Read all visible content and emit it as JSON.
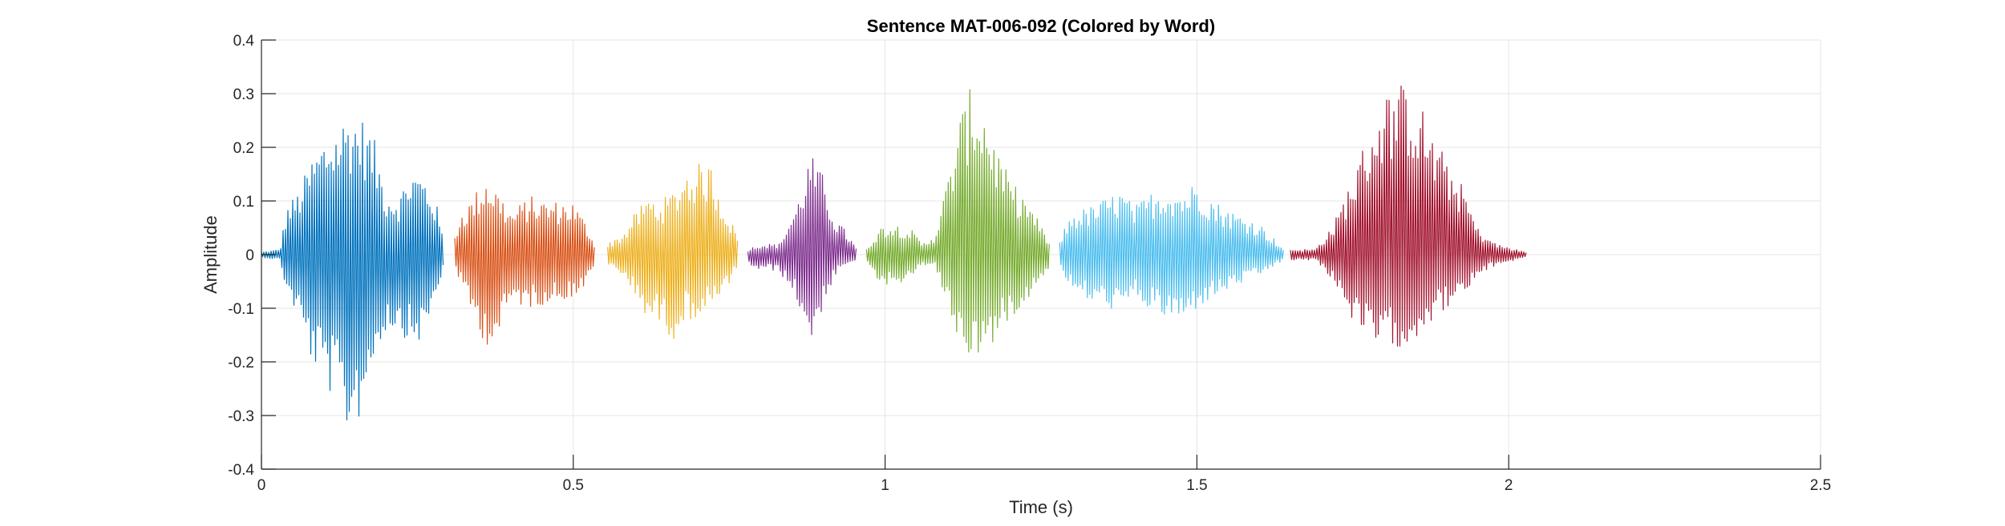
{
  "chart_data": {
    "type": "line",
    "title": "Sentence MAT-006-092 (Colored by Word)",
    "xlabel": "Time (s)",
    "ylabel": "Amplitude",
    "xlim": [
      0,
      2.5
    ],
    "ylim": [
      -0.4,
      0.4
    ],
    "grid": true,
    "x_ticks": [
      0,
      0.5,
      1,
      1.5,
      2,
      2.5
    ],
    "x_tick_labels": [
      "0",
      "0.5",
      "1",
      "1.5",
      "2",
      "2.5"
    ],
    "y_ticks": [
      0.4,
      0.3,
      0.2,
      0.1,
      0,
      -0.1,
      -0.2,
      -0.3,
      -0.4
    ],
    "y_tick_labels": [
      "0.4",
      "0.3",
      "0.2",
      "0.1",
      "0",
      "-0.1",
      "-0.2",
      "-0.3",
      "-0.4"
    ],
    "series": [
      {
        "color": "#0072BD",
        "start": 0.0,
        "end": 0.293,
        "envelope": [
          [
            0,
            0.005,
            -0.005
          ],
          [
            0.03,
            0.01,
            -0.01
          ],
          [
            0.04,
            0.09,
            -0.07
          ],
          [
            0.06,
            0.12,
            -0.12
          ],
          [
            0.08,
            0.18,
            -0.2
          ],
          [
            0.1,
            0.22,
            -0.24
          ],
          [
            0.12,
            0.24,
            -0.28
          ],
          [
            0.14,
            0.27,
            -0.34
          ],
          [
            0.16,
            0.26,
            -0.3
          ],
          [
            0.18,
            0.22,
            -0.2
          ],
          [
            0.2,
            0.12,
            -0.14
          ],
          [
            0.22,
            0.11,
            -0.14
          ],
          [
            0.24,
            0.16,
            -0.17
          ],
          [
            0.26,
            0.15,
            -0.16
          ],
          [
            0.28,
            0.1,
            -0.08
          ],
          [
            0.293,
            0.02,
            -0.02
          ]
        ]
      },
      {
        "color": "#D95319",
        "start": 0.31,
        "end": 0.535,
        "envelope": [
          [
            0.31,
            0.04,
            -0.02
          ],
          [
            0.32,
            0.08,
            -0.06
          ],
          [
            0.34,
            0.11,
            -0.12
          ],
          [
            0.36,
            0.15,
            -0.17
          ],
          [
            0.38,
            0.12,
            -0.16
          ],
          [
            0.4,
            0.08,
            -0.09
          ],
          [
            0.43,
            0.11,
            -0.1
          ],
          [
            0.46,
            0.1,
            -0.09
          ],
          [
            0.5,
            0.1,
            -0.08
          ],
          [
            0.52,
            0.06,
            -0.06
          ],
          [
            0.535,
            0.02,
            -0.02
          ]
        ]
      },
      {
        "color": "#EDB120",
        "start": 0.555,
        "end": 0.765,
        "envelope": [
          [
            0.555,
            0.02,
            -0.02
          ],
          [
            0.58,
            0.04,
            -0.04
          ],
          [
            0.6,
            0.08,
            -0.08
          ],
          [
            0.62,
            0.11,
            -0.12
          ],
          [
            0.64,
            0.1,
            -0.13
          ],
          [
            0.66,
            0.12,
            -0.16
          ],
          [
            0.68,
            0.16,
            -0.12
          ],
          [
            0.7,
            0.17,
            -0.12
          ],
          [
            0.72,
            0.17,
            -0.1
          ],
          [
            0.74,
            0.1,
            -0.08
          ],
          [
            0.765,
            0.03,
            -0.02
          ]
        ]
      },
      {
        "color": "#7E2F8E",
        "start": 0.78,
        "end": 0.955,
        "envelope": [
          [
            0.78,
            0.01,
            -0.02
          ],
          [
            0.8,
            0.02,
            -0.03
          ],
          [
            0.83,
            0.02,
            -0.03
          ],
          [
            0.86,
            0.1,
            -0.09
          ],
          [
            0.88,
            0.19,
            -0.17
          ],
          [
            0.9,
            0.15,
            -0.1
          ],
          [
            0.92,
            0.07,
            -0.04
          ],
          [
            0.94,
            0.04,
            -0.02
          ],
          [
            0.955,
            0.01,
            -0.01
          ]
        ]
      },
      {
        "color": "#77AC30",
        "start": 0.97,
        "end": 1.265,
        "envelope": [
          [
            0.97,
            0.01,
            -0.01
          ],
          [
            0.99,
            0.05,
            -0.05
          ],
          [
            1.01,
            0.06,
            -0.06
          ],
          [
            1.04,
            0.05,
            -0.05
          ],
          [
            1.06,
            0.02,
            -0.02
          ],
          [
            1.08,
            0.04,
            -0.02
          ],
          [
            1.1,
            0.14,
            -0.1
          ],
          [
            1.12,
            0.26,
            -0.17
          ],
          [
            1.14,
            0.32,
            -0.2
          ],
          [
            1.16,
            0.28,
            -0.18
          ],
          [
            1.18,
            0.2,
            -0.16
          ],
          [
            1.2,
            0.14,
            -0.12
          ],
          [
            1.23,
            0.1,
            -0.08
          ],
          [
            1.265,
            0.02,
            -0.02
          ]
        ]
      },
      {
        "color": "#4DBEEE",
        "start": 1.28,
        "end": 1.64,
        "envelope": [
          [
            1.28,
            0.03,
            -0.02
          ],
          [
            1.3,
            0.08,
            -0.07
          ],
          [
            1.33,
            0.09,
            -0.09
          ],
          [
            1.36,
            0.11,
            -0.1
          ],
          [
            1.38,
            0.12,
            -0.11
          ],
          [
            1.4,
            0.09,
            -0.08
          ],
          [
            1.43,
            0.12,
            -0.11
          ],
          [
            1.45,
            0.13,
            -0.12
          ],
          [
            1.48,
            0.12,
            -0.13
          ],
          [
            1.5,
            0.14,
            -0.1
          ],
          [
            1.53,
            0.1,
            -0.08
          ],
          [
            1.56,
            0.08,
            -0.06
          ],
          [
            1.6,
            0.06,
            -0.04
          ],
          [
            1.64,
            0.01,
            -0.01
          ]
        ]
      },
      {
        "color": "#A2142F",
        "start": 1.65,
        "end": 2.03,
        "envelope": [
          [
            1.65,
            0.01,
            -0.01
          ],
          [
            1.69,
            0.01,
            -0.01
          ],
          [
            1.72,
            0.06,
            -0.05
          ],
          [
            1.74,
            0.12,
            -0.1
          ],
          [
            1.76,
            0.18,
            -0.15
          ],
          [
            1.78,
            0.25,
            -0.17
          ],
          [
            1.8,
            0.3,
            -0.18
          ],
          [
            1.82,
            0.32,
            -0.17
          ],
          [
            1.84,
            0.32,
            -0.18
          ],
          [
            1.86,
            0.28,
            -0.14
          ],
          [
            1.88,
            0.22,
            -0.12
          ],
          [
            1.9,
            0.18,
            -0.1
          ],
          [
            1.93,
            0.12,
            -0.08
          ],
          [
            1.95,
            0.05,
            -0.04
          ],
          [
            1.98,
            0.02,
            -0.02
          ],
          [
            2.03,
            0.004,
            -0.004
          ]
        ]
      }
    ]
  }
}
